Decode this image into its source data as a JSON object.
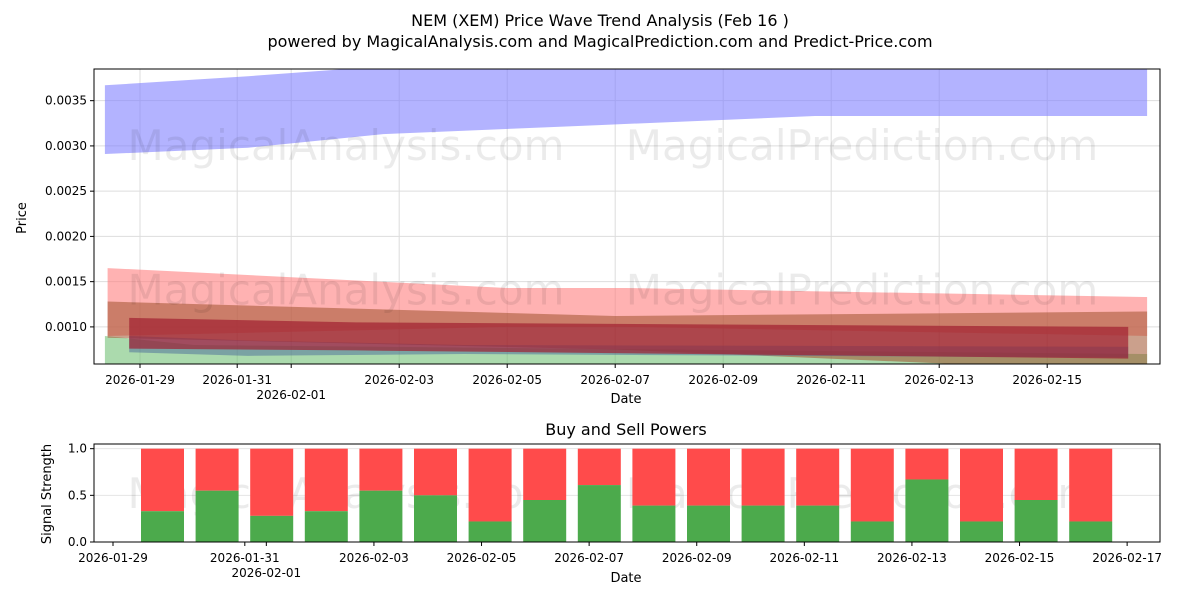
{
  "chart_data": [
    {
      "type": "area",
      "title": "NEM (XEM) Price Wave Trend Analysis (Feb 16 )",
      "subtitle": "powered by MagicalAnalysis.com and MagicalPrediction.com and Predict-Price.com",
      "xlabel": "Date",
      "ylabel": "Price",
      "ylim": [
        0.00059,
        0.00385
      ],
      "yticks": [
        "0.0010",
        "0.0015",
        "0.0020",
        "0.0025",
        "0.0030",
        "0.0035"
      ],
      "ytick_values": [
        0.001,
        0.0015,
        0.002,
        0.0025,
        0.003,
        0.0035
      ],
      "xticks": [
        "2026-01-29",
        "2026-01-31",
        "2026-02-01",
        "2026-02-03",
        "2026-02-05",
        "2026-02-07",
        "2026-02-09",
        "2026-02-11",
        "2026-02-13",
        "2026-02-15"
      ],
      "xtick_days": [
        0,
        1.8,
        2.8,
        4.8,
        6.8,
        8.8,
        10.8,
        12.8,
        14.8,
        16.8
      ],
      "watermarks": [
        "MagicalAnalysis.com",
        "MagicalPrediction.com"
      ],
      "bands": [
        {
          "name": "blue",
          "color": "#8080ff",
          "opacity": 0.6,
          "points": [
            [
              -0.65,
              0.00367,
              0.00291
            ],
            [
              2,
              0.00377,
              0.00298
            ],
            [
              4.5,
              0.00388,
              0.00313
            ],
            [
              8.5,
              0.004,
              0.00323
            ],
            [
              12.5,
              0.0041,
              0.00333
            ],
            [
              18.65,
              0.0041,
              0.00333
            ]
          ]
        },
        {
          "name": "pink",
          "color": "#ff7f7f",
          "opacity": 0.6,
          "points": [
            [
              -0.6,
              0.00165,
              0.0009
            ],
            [
              6.8,
              0.00143,
              0.001
            ],
            [
              9,
              0.00143,
              0.001
            ],
            [
              18.65,
              0.00133,
              0.0009
            ]
          ]
        },
        {
          "name": "green",
          "color": "#66bb6a",
          "opacity": 0.55,
          "points": [
            [
              -0.65,
              0.0009,
              0.0005
            ],
            [
              1,
              0.0008,
              0.0005
            ],
            [
              18.65,
              0.0007,
              0.0005
            ]
          ]
        },
        {
          "name": "brown",
          "color": "#a0522d",
          "opacity": 0.55,
          "points": [
            [
              -0.6,
              0.00128,
              0.00088
            ],
            [
              8.8,
              0.00112,
              0.00075
            ],
            [
              18.65,
              0.00117,
              0.0005
            ]
          ]
        },
        {
          "name": "slate",
          "color": "#4a6a9a",
          "opacity": 0.5,
          "points": [
            [
              -0.2,
              0.0009,
              0.00072
            ],
            [
              2,
              0.00085,
              0.00068
            ],
            [
              6,
              0.0008,
              0.0007
            ],
            [
              18.3,
              0.00078,
              0.00066
            ]
          ]
        },
        {
          "name": "darkred",
          "color": "#a02030",
          "opacity": 0.7,
          "points": [
            [
              -0.2,
              0.0011,
              0.00076
            ],
            [
              4,
              0.00105,
              0.00074
            ],
            [
              18.3,
              0.001,
              0.00065
            ]
          ]
        }
      ]
    },
    {
      "type": "bar",
      "title": "Buy and Sell Powers",
      "xlabel": "Date",
      "ylabel": "Signal Strength",
      "ylim": [
        0,
        1.05
      ],
      "yticks": [
        "0.0",
        "0.5",
        "1.0"
      ],
      "ytick_values": [
        0,
        0.5,
        1
      ],
      "xticks": [
        "2026-01-29",
        "2026-01-31",
        "2026-02-01",
        "2026-02-03",
        "2026-02-05",
        "2026-02-07",
        "2026-02-09",
        "2026-02-11",
        "2026-02-13",
        "2026-02-15",
        "2026-02-17"
      ],
      "xtick_days": [
        0,
        2.45,
        2.85,
        4.85,
        6.85,
        8.85,
        10.85,
        12.85,
        14.85,
        16.85,
        18.85
      ],
      "buy_color": "#4caa4c",
      "sell_color": "#ff4b4b",
      "categories": [
        "2026-01-30",
        "2026-01-31",
        "2026-02-01",
        "2026-02-02",
        "2026-02-03",
        "2026-02-04",
        "2026-02-05",
        "2026-02-06",
        "2026-02-07",
        "2026-02-08",
        "2026-02-09",
        "2026-02-10",
        "2026-02-11",
        "2026-02-12",
        "2026-02-13",
        "2026-02-14",
        "2026-02-15",
        "2026-02-16"
      ],
      "buy": [
        0.33,
        0.55,
        0.28,
        0.33,
        0.55,
        0.5,
        0.22,
        0.45,
        0.61,
        0.39,
        0.39,
        0.39,
        0.39,
        0.22,
        0.67,
        0.22,
        0.45,
        0.22
      ],
      "sell_total": 1.0
    }
  ]
}
